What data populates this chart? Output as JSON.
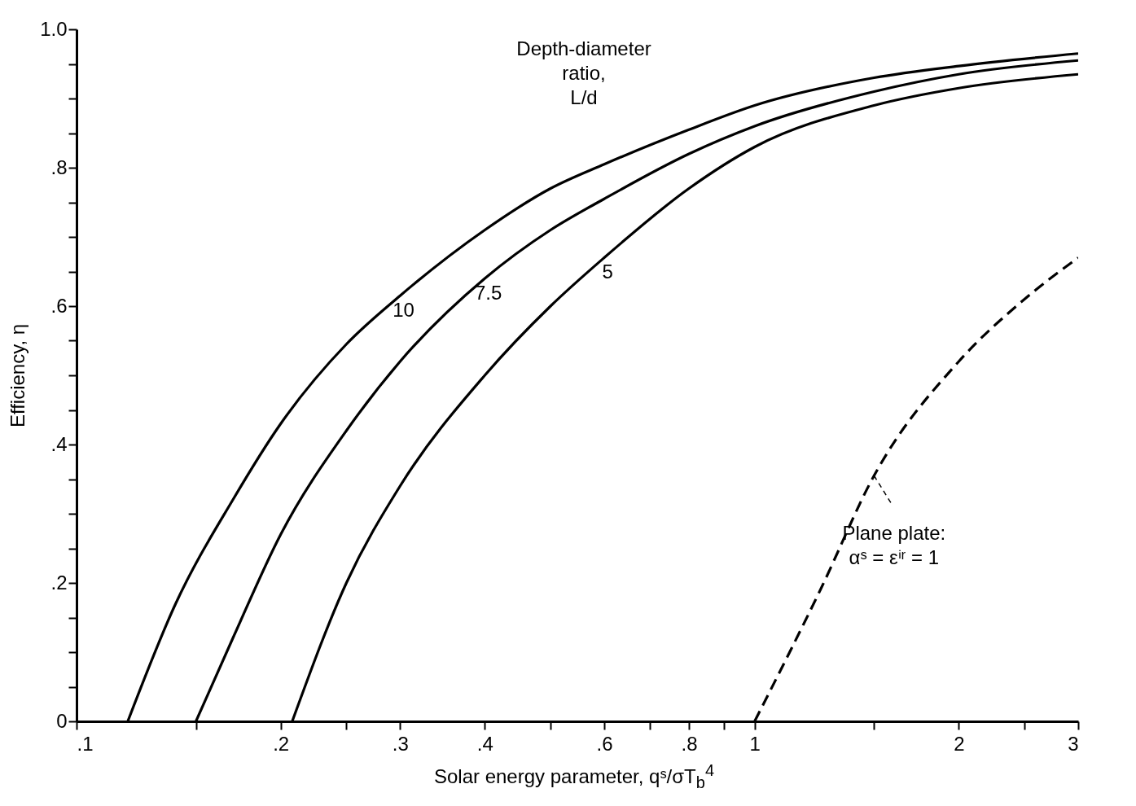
{
  "chart_data": {
    "type": "line",
    "xlabel": "Solar energy parameter, qˢ/σT$_{b}$$^{4}$",
    "ylabel": "Efficiency, η",
    "annotations": [
      "Depth-diameter ratio, L/d"
    ],
    "log": "x",
    "xlim": [
      0.1,
      3
    ],
    "ylim": [
      0,
      1
    ],
    "xticks": [
      {
        "value": 0.1,
        "label": ".1"
      },
      {
        "value": 0.15,
        "label": null
      },
      {
        "value": 0.2,
        "label": ".2"
      },
      {
        "value": 0.25,
        "label": null
      },
      {
        "value": 0.3,
        "label": ".3"
      },
      {
        "value": 0.4,
        "label": ".4"
      },
      {
        "value": 0.5,
        "label": null
      },
      {
        "value": 0.6,
        "label": ".6"
      },
      {
        "value": 0.7,
        "label": null
      },
      {
        "value": 0.8,
        "label": ".8"
      },
      {
        "value": 0.9,
        "label": null
      },
      1,
      {
        "value": 1.5,
        "label": null
      },
      2,
      {
        "value": 2.5,
        "label": null
      },
      3
    ],
    "yticks": [
      0,
      {
        "value": 0.05,
        "label": null
      },
      {
        "value": 0.1,
        "label": null
      },
      {
        "value": 0.15,
        "label": null
      },
      {
        "value": 0.2,
        "label": ".2"
      },
      {
        "value": 0.25,
        "label": null
      },
      {
        "value": 0.3,
        "label": null
      },
      {
        "value": 0.35,
        "label": null
      },
      {
        "value": 0.4,
        "label": ".4"
      },
      {
        "value": 0.45,
        "label": null
      },
      {
        "value": 0.5,
        "label": null
      },
      {
        "value": 0.55,
        "label": null
      },
      {
        "value": 0.6,
        "label": ".6"
      },
      {
        "value": 0.65,
        "label": null
      },
      {
        "value": 0.7,
        "label": null
      },
      {
        "value": 0.75,
        "label": null
      },
      {
        "value": 0.8,
        "label": ".8"
      },
      {
        "value": 0.85,
        "label": null
      },
      {
        "value": 0.9,
        "label": null
      },
      {
        "value": 0.95,
        "label": null
      },
      {
        "value": 1,
        "label": "1.0"
      }
    ],
    "marker": "none",
    "series": [
      {
        "name": "10",
        "color": "#000000",
        "line_style": "solid",
        "x": [
          0.119,
          0.14,
          0.17,
          0.2,
          0.25,
          0.3,
          0.4,
          0.5,
          0.6,
          0.8,
          1,
          1.5,
          2,
          3
        ],
        "values": [
          0,
          0.17,
          0.32,
          0.43,
          0.545,
          0.615,
          0.71,
          0.77,
          0.805,
          0.855,
          0.89,
          0.93,
          0.947,
          0.965
        ]
      },
      {
        "name": "7.5",
        "color": "#000000",
        "line_style": "solid",
        "x": [
          0.15,
          0.17,
          0.2,
          0.25,
          0.3,
          0.4,
          0.5,
          0.6,
          0.8,
          1,
          1.5,
          2,
          3
        ],
        "values": [
          0,
          0.12,
          0.27,
          0.42,
          0.52,
          0.64,
          0.71,
          0.755,
          0.82,
          0.86,
          0.91,
          0.935,
          0.955
        ]
      },
      {
        "name": "5",
        "color": "#000000",
        "line_style": "solid",
        "x": [
          0.208,
          0.25,
          0.3,
          0.4,
          0.5,
          0.6,
          0.8,
          1,
          1.5,
          2,
          3
        ],
        "values": [
          0,
          0.2,
          0.34,
          0.5,
          0.6,
          0.67,
          0.77,
          0.83,
          0.89,
          0.915,
          0.935
        ]
      },
      {
        "name": "Plane plate: αˢ = εⁱʳ = 1",
        "color": "#000000",
        "line_style": "dashed",
        "x": [
          1,
          1.25,
          1.5,
          2,
          2.5,
          3
        ],
        "values": [
          0,
          0.19,
          0.355,
          0.52,
          0.61,
          0.67
        ]
      }
    ]
  }
}
